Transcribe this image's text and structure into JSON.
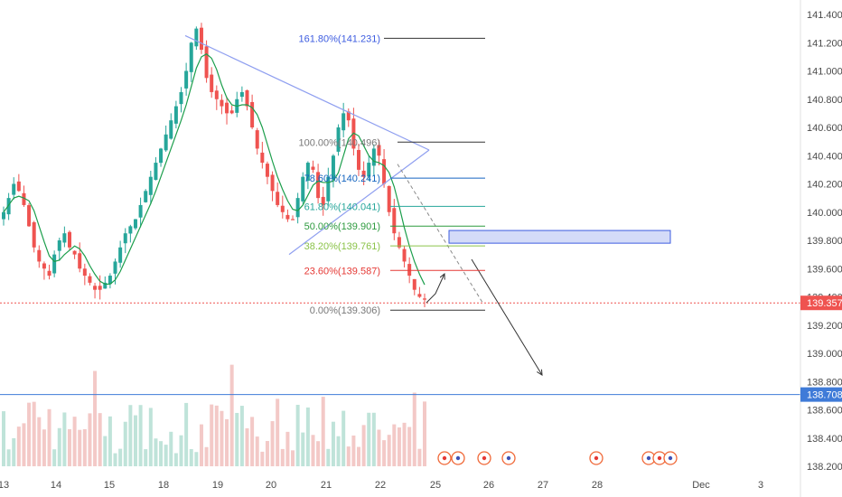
{
  "chart_data": {
    "type": "candlestick",
    "title": "",
    "xlabel": "",
    "ylabel": "",
    "ylim": [
      138.2,
      141.5
    ],
    "grid": false,
    "legend": "none",
    "x_tick_labels": [
      "13",
      "14",
      "15",
      "18",
      "19",
      "20",
      "21",
      "22",
      "25",
      "26",
      "27",
      "28",
      "Dec",
      "3"
    ],
    "y_tick_labels": [
      "141.400",
      "141.200",
      "141.000",
      "140.800",
      "140.600",
      "140.400",
      "140.200",
      "140.000",
      "139.800",
      "139.600",
      "139.400",
      "139.200",
      "139.000",
      "138.800",
      "138.600",
      "138.400",
      "138.200"
    ],
    "y_ticks": [
      141.4,
      141.2,
      141.0,
      140.8,
      140.6,
      140.4,
      140.2,
      140.0,
      139.8,
      139.6,
      139.4,
      139.2,
      139.0,
      138.8,
      138.6,
      138.4,
      138.2
    ],
    "close_series": [
      140.0,
      140.1,
      140.2,
      140.15,
      140.05,
      139.9,
      139.75,
      139.65,
      139.6,
      139.55,
      139.7,
      139.8,
      139.85,
      139.75,
      139.7,
      139.6,
      139.55,
      139.5,
      139.45,
      139.45,
      139.5,
      139.55,
      139.65,
      139.75,
      139.85,
      139.9,
      139.95,
      140.05,
      140.15,
      140.25,
      140.35,
      140.45,
      140.55,
      140.65,
      140.75,
      140.85,
      141.0,
      141.2,
      141.3,
      141.15,
      140.95,
      140.85,
      140.8,
      140.75,
      140.7,
      140.7,
      140.8,
      140.85,
      140.75,
      140.6,
      140.45,
      140.35,
      140.25,
      140.15,
      140.05,
      140.0,
      139.95,
      139.95,
      140.1,
      140.25,
      140.35,
      140.3,
      140.1,
      140.05,
      140.25,
      140.4,
      140.6,
      140.7,
      140.65,
      140.45,
      140.3,
      140.25,
      140.35,
      140.45,
      140.4,
      140.2,
      140.0,
      139.85,
      139.75,
      139.65,
      139.55,
      139.45,
      139.4,
      139.38
    ],
    "fibonacci": {
      "levels": [
        {
          "label": "161.80%(141.231)",
          "value": 141.231,
          "color": "#3d5ce0"
        },
        {
          "label": "100.00%(140.496)",
          "value": 140.496,
          "color": "#787878"
        },
        {
          "label": "78.60%(140.241)",
          "value": 140.241,
          "color": "#1565c0"
        },
        {
          "label": "61.80%(140.041)",
          "value": 140.041,
          "color": "#26a69a"
        },
        {
          "label": "50.00%(139.901)",
          "value": 139.901,
          "color": "#2e9b3f"
        },
        {
          "label": "38.20%(139.761)",
          "value": 139.761,
          "color": "#8bc34a"
        },
        {
          "label": "23.60%(139.587)",
          "value": 139.587,
          "color": "#e53935"
        },
        {
          "label": "0.00%(139.306)",
          "value": 139.306,
          "color": "#787878"
        }
      ]
    },
    "price_labels": [
      {
        "text": "139.357",
        "value": 139.357,
        "color": "#ef5350"
      },
      {
        "text": "138.708",
        "value": 138.708,
        "color": "#3f7bd8"
      }
    ],
    "zone": {
      "from": 139.78,
      "to": 139.87,
      "color": "#3d5ce0"
    },
    "colors": {
      "up": "#26a69a",
      "down": "#ef5350",
      "ma": "#1b9e4b",
      "trend": "#8f9ff0",
      "volume_up": "#bfe3d9",
      "volume_down": "#f3c9c7"
    }
  }
}
